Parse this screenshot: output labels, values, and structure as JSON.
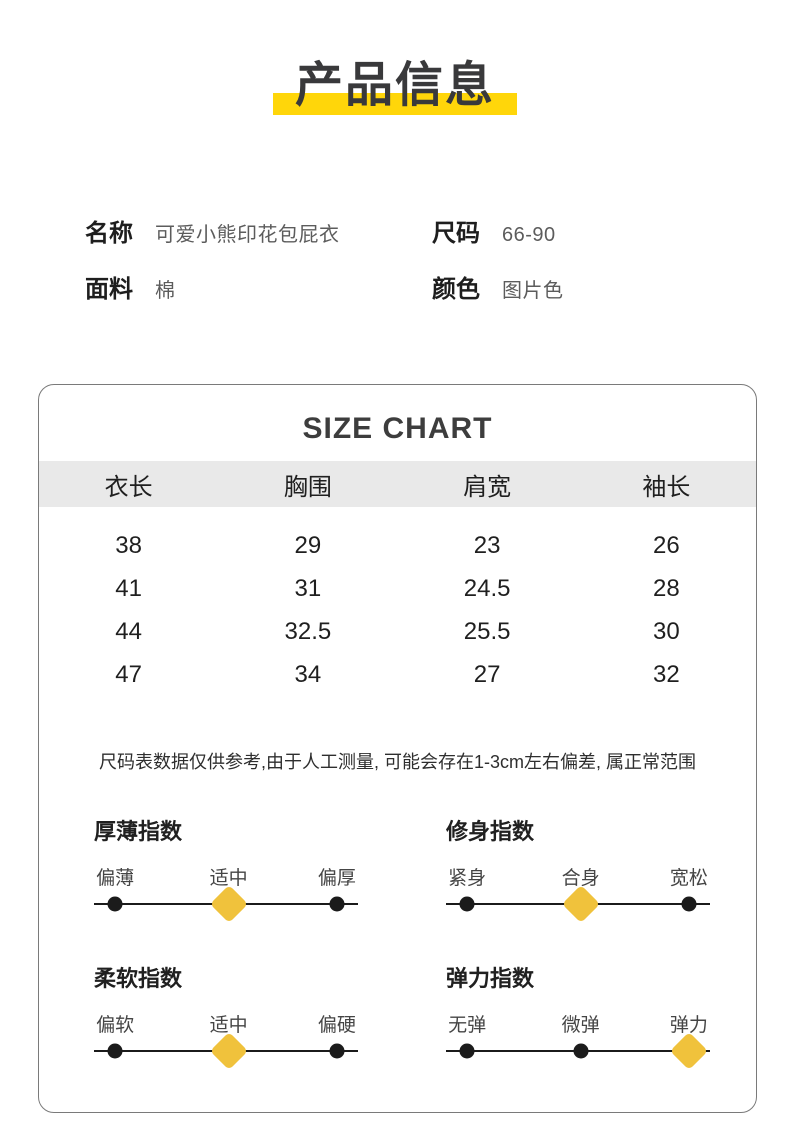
{
  "page": {
    "title": "产品信息"
  },
  "product_info": {
    "fields": [
      {
        "label": "名称",
        "value": "可爱小熊印花包屁衣"
      },
      {
        "label": "尺码",
        "value": "66-90"
      },
      {
        "label": "面料",
        "value": "棉"
      },
      {
        "label": "颜色",
        "value": "图片色"
      }
    ]
  },
  "size_chart": {
    "title": "SIZE CHART",
    "columns": [
      "衣长",
      "胸围",
      "肩宽",
      "袖长"
    ],
    "rows": [
      [
        "38",
        "29",
        "23",
        "26"
      ],
      [
        "41",
        "31",
        "24.5",
        "28"
      ],
      [
        "44",
        "32.5",
        "25.5",
        "30"
      ],
      [
        "47",
        "34",
        "27",
        "32"
      ]
    ],
    "note": "尺码表数据仅供参考,由于人工测量, 可能会存在1-3cm左右偏差, 属正常范围"
  },
  "indices": [
    {
      "title": "厚薄指数",
      "labels": [
        "偏薄",
        "适中",
        "偏厚"
      ],
      "active_index": 1,
      "active_label": "适中"
    },
    {
      "title": "修身指数",
      "labels": [
        "紧身",
        "合身",
        "宽松"
      ],
      "active_index": 1,
      "active_label": "合身"
    },
    {
      "title": "柔软指数",
      "labels": [
        "偏软",
        "适中",
        "偏硬"
      ],
      "active_index": 1,
      "active_label": "适中"
    },
    {
      "title": "弹力指数",
      "labels": [
        "无弹",
        "微弹",
        "弹力"
      ],
      "active_index": 2,
      "active_label": "弹力"
    }
  ],
  "colors": {
    "accent_yellow": "#FFD60A",
    "marker_gold": "#F0C23C",
    "table_header_bg": "#E9E9E9"
  }
}
